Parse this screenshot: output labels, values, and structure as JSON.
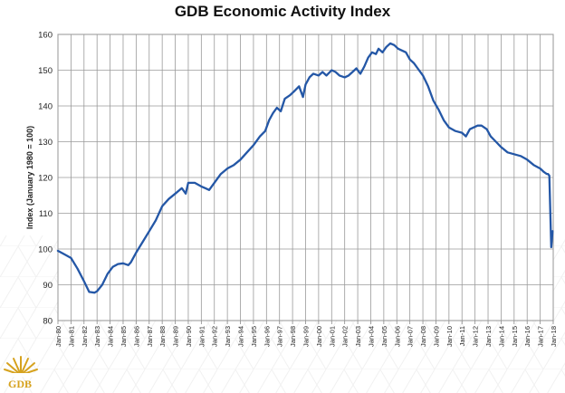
{
  "chart_data": {
    "type": "line",
    "title": "GDB Economic Activity Index",
    "ylabel": "Index (January 1980 = 100)",
    "xlabel": "",
    "ylim": [
      80,
      160
    ],
    "yticks": [
      80,
      90,
      100,
      110,
      120,
      130,
      140,
      150,
      160
    ],
    "xlim": [
      1980.0,
      2018.0
    ],
    "xtick_labels": [
      "Jan-80",
      "Jan-81",
      "Jan-82",
      "Jan-83",
      "Jan-84",
      "Jan-85",
      "Jan-86",
      "Jan-87",
      "Jan-88",
      "Jan-89",
      "Jan-90",
      "Jan-91",
      "Jan-92",
      "Jan-93",
      "Jan-94",
      "Jan-95",
      "Jan-96",
      "Jan-97",
      "Jan-98",
      "Jan-99",
      "Jan-00",
      "Jan-01",
      "Jan-02",
      "Jan-03",
      "Jan-04",
      "Jan-05",
      "Jan-06",
      "Jan-07",
      "Jan-08",
      "Jan-09",
      "Jan-10",
      "Jan-11",
      "Jan-12",
      "Jan-13",
      "Jan-14",
      "Jan-15",
      "Jan-16",
      "Jan-17",
      "Jan-18"
    ],
    "grid": "vertical and horizontal",
    "line_color": "#2457a6",
    "series": [
      {
        "name": "",
        "x": [
          1980.0,
          1980.5,
          1981.0,
          1981.5,
          1982.0,
          1982.4,
          1982.8,
          1983.0,
          1983.4,
          1983.8,
          1984.2,
          1984.6,
          1985.0,
          1985.4,
          1985.6,
          1986.0,
          1986.5,
          1987.0,
          1987.5,
          1988.0,
          1988.5,
          1989.0,
          1989.5,
          1989.8,
          1990.0,
          1990.5,
          1991.0,
          1991.3,
          1991.6,
          1992.0,
          1992.5,
          1993.0,
          1993.5,
          1994.0,
          1994.5,
          1995.0,
          1995.5,
          1995.9,
          1996.2,
          1996.5,
          1996.8,
          1997.1,
          1997.4,
          1997.8,
          1998.1,
          1998.5,
          1998.8,
          1999.0,
          1999.3,
          1999.6,
          2000.0,
          2000.3,
          2000.6,
          2001.0,
          2001.3,
          2001.6,
          2002.0,
          2002.3,
          2002.6,
          2002.9,
          2003.2,
          2003.5,
          2003.8,
          2004.1,
          2004.4,
          2004.6,
          2004.9,
          2005.2,
          2005.5,
          2005.8,
          2006.1,
          2006.4,
          2006.7,
          2007.0,
          2007.3,
          2007.6,
          2008.0,
          2008.4,
          2008.8,
          2009.2,
          2009.6,
          2010.0,
          2010.5,
          2011.0,
          2011.3,
          2011.6,
          2011.9,
          2012.2,
          2012.5,
          2012.9,
          2013.2,
          2013.6,
          2014.0,
          2014.5,
          2015.0,
          2015.5,
          2016.0,
          2016.5,
          2017.0,
          2017.3,
          2017.5,
          2017.6,
          2017.7,
          2017.85,
          2017.95
        ],
        "values": [
          99.5,
          98.5,
          97.5,
          94.5,
          91.0,
          88.0,
          87.8,
          88.2,
          90.0,
          93.0,
          95.0,
          95.8,
          96.0,
          95.5,
          96.3,
          99.0,
          102.0,
          105.0,
          108.0,
          112.0,
          114.0,
          115.5,
          117.0,
          115.5,
          118.5,
          118.5,
          117.5,
          117.0,
          116.5,
          118.5,
          121.0,
          122.5,
          123.5,
          125.0,
          127.0,
          129.0,
          131.5,
          133.0,
          136.0,
          138.0,
          139.5,
          138.5,
          142.0,
          143.0,
          144.0,
          145.5,
          142.5,
          146.0,
          148.0,
          149.0,
          148.5,
          149.5,
          148.5,
          150.0,
          149.5,
          148.5,
          148.0,
          148.5,
          149.5,
          150.5,
          149.0,
          151.0,
          153.5,
          155.0,
          154.5,
          156.0,
          155.0,
          156.5,
          157.5,
          157.0,
          156.0,
          155.5,
          155.0,
          153.0,
          152.0,
          150.5,
          148.5,
          145.5,
          141.5,
          139.0,
          136.0,
          134.0,
          133.0,
          132.5,
          131.5,
          133.5,
          134.0,
          134.5,
          134.5,
          133.5,
          131.5,
          130.0,
          128.5,
          127.0,
          126.5,
          126.0,
          125.0,
          123.5,
          122.5,
          121.5,
          121.0,
          121.0,
          120.5,
          100.5,
          105.0
        ]
      }
    ]
  },
  "logo": {
    "text": "GDB",
    "icon": "sun-rays-icon",
    "color": "#d6a21e"
  }
}
